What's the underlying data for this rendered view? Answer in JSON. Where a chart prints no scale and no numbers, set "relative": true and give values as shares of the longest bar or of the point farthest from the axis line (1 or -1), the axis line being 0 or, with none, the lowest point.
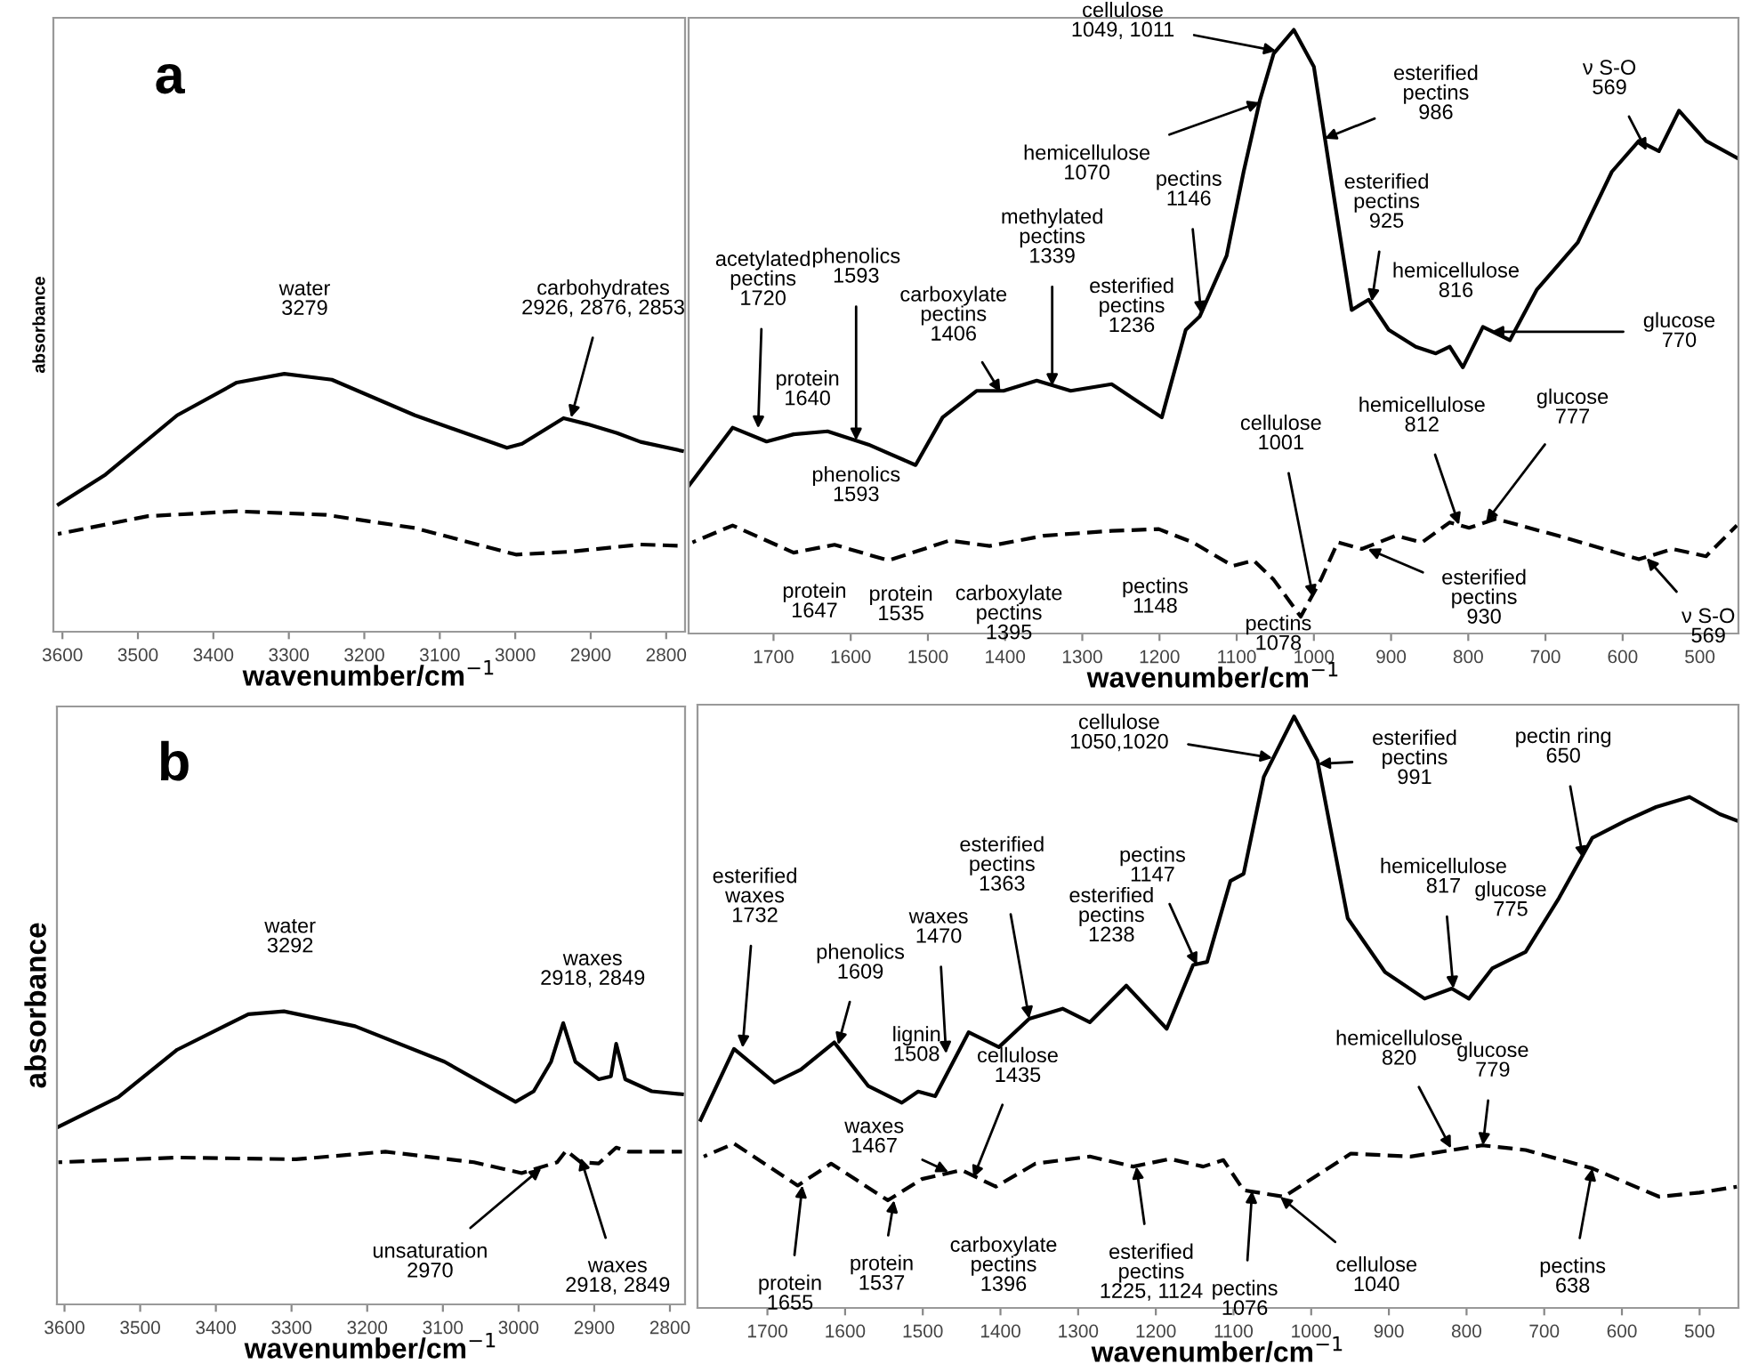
{
  "chart_data": [
    {
      "type": "line",
      "title": "a",
      "relative": true,
      "xlabel": "wavenumber/cm$^{−1}$",
      "ylabel": "absorbance",
      "xlim": [
        3612,
        2775
      ],
      "xticks": [
        3600,
        3500,
        3400,
        3300,
        3200,
        3100,
        3000,
        2900,
        2800
      ],
      "grid": false,
      "legend": false,
      "series": [
        {
          "color": "#000000",
          "line_style": "solid",
          "x": [
            3605,
            3543,
            3448,
            3369,
            3306,
            3243,
            3133,
            3011,
            2991,
            2936,
            2905,
            2865,
            2834,
            2779
          ],
          "values": [
            0.494,
            0.609,
            0.839,
            0.966,
            1.0,
            0.977,
            0.839,
            0.713,
            0.729,
            0.828,
            0.805,
            0.77,
            0.736,
            0.701
          ]
        },
        {
          "color": "#000000",
          "line_style": "dashed",
          "x": [
            3606,
            3487,
            3369,
            3251,
            3133,
            2999,
            2928,
            2834,
            2779
          ],
          "values": [
            0.379,
            0.448,
            0.467,
            0.453,
            0.402,
            0.299,
            0.31,
            0.338,
            0.333
          ]
        }
      ],
      "annotations": [
        {
          "text": "water\n3279",
          "x": 3279,
          "y": 1.0
        },
        {
          "text": "carbohydrates\n2926, 2876, 2853",
          "x": 2926,
          "y": 0.83
        }
      ]
    },
    {
      "type": "line",
      "relative": true,
      "xlabel": "wavenumber/cm$^{−1}$",
      "xlim": [
        1810,
        450
      ],
      "xticks": [
        1700,
        1600,
        1500,
        1400,
        1300,
        1200,
        1100,
        1000,
        900,
        800,
        700,
        600,
        500
      ],
      "grid": false,
      "legend": false,
      "series": [
        {
          "color": "#000000",
          "line_style": "solid",
          "x": [
            1809,
            1753,
            1709,
            1674,
            1630,
            1577,
            1516,
            1481,
            1437,
            1402,
            1359,
            1315,
            1262,
            1197,
            1166,
            1148,
            1113,
            1091,
            1070,
            1052,
            1026,
            1000,
            973,
            951,
            929,
            903,
            868,
            842,
            824,
            807,
            781,
            746,
            711,
            658,
            614,
            579,
            553,
            527,
            492,
            452
          ],
          "values": [
            0.246,
            0.341,
            0.318,
            0.33,
            0.335,
            0.313,
            0.279,
            0.358,
            0.402,
            0.402,
            0.419,
            0.402,
            0.413,
            0.358,
            0.503,
            0.525,
            0.626,
            0.765,
            0.883,
            0.961,
            1.0,
            0.939,
            0.715,
            0.536,
            0.553,
            0.503,
            0.475,
            0.464,
            0.475,
            0.441,
            0.508,
            0.486,
            0.57,
            0.648,
            0.765,
            0.816,
            0.799,
            0.866,
            0.816,
            0.788
          ]
        },
        {
          "color": "#000000",
          "line_style": "dashed",
          "x": [
            1805,
            1753,
            1674,
            1621,
            1551,
            1472,
            1420,
            1350,
            1262,
            1201,
            1157,
            1105,
            1078,
            1052,
            1017,
            991,
            969,
            938,
            894,
            860,
            824,
            799,
            764,
            684,
            579,
            535,
            492,
            452
          ],
          "values": [
            0.151,
            0.179,
            0.134,
            0.147,
            0.121,
            0.154,
            0.145,
            0.162,
            0.17,
            0.173,
            0.151,
            0.112,
            0.121,
            0.089,
            0.028,
            0.089,
            0.151,
            0.14,
            0.162,
            0.151,
            0.184,
            0.175,
            0.19,
            0.162,
            0.123,
            0.14,
            0.128,
            0.179
          ]
        }
      ],
      "annotations": [
        {
          "text": "acetylated\npectins\n1720",
          "x": 1720,
          "y": 0.34
        },
        {
          "text": "protein\n1640",
          "x": 1640,
          "y": 0.33
        },
        {
          "text": "phenolics\n1593",
          "x": 1593,
          "y": 0.32
        },
        {
          "text": "carboxylate\npectins\n1406",
          "x": 1406,
          "y": 0.4
        },
        {
          "text": "methylated\npectins\n1339",
          "x": 1339,
          "y": 0.41
        },
        {
          "text": "esterified\npectins\n1236",
          "x": 1236,
          "y": 0.41
        },
        {
          "text": "pectins\n1146",
          "x": 1146,
          "y": 0.53
        },
        {
          "text": "hemicellulose\n1070",
          "x": 1070,
          "y": 0.88
        },
        {
          "text": "cellulose\n1049, 1011",
          "x": 1049,
          "y": 0.965
        },
        {
          "text": "esterified\npectins\n986",
          "x": 986,
          "y": 0.82
        },
        {
          "text": "esterified\npectins\n925",
          "x": 925,
          "y": 0.55
        },
        {
          "text": "hemicellulose\n816",
          "x": 816,
          "y": 0.46
        },
        {
          "text": "glucose\n770",
          "x": 770,
          "y": 0.5
        },
        {
          "text": "ν S-O\n569",
          "x": 569,
          "y": 0.8
        },
        {
          "text": "phenolics\n1593",
          "x": 1593,
          "y": 0.13
        },
        {
          "text": "protein\n1647",
          "x": 1647,
          "y": 0.134
        },
        {
          "text": "protein\n1535",
          "x": 1535,
          "y": 0.125
        },
        {
          "text": "carboxylate\npectins\n1395",
          "x": 1395,
          "y": 0.155
        },
        {
          "text": "pectins\n1148",
          "x": 1148,
          "y": 0.15
        },
        {
          "text": "pectins\n1078",
          "x": 1078,
          "y": 0.121
        },
        {
          "text": "cellulose\n1001",
          "x": 1001,
          "y": 0.06
        },
        {
          "text": "esterified\npectins\n930",
          "x": 930,
          "y": 0.14
        },
        {
          "text": "hemicellulose\n812",
          "x": 812,
          "y": 0.18
        },
        {
          "text": "glucose\n777",
          "x": 777,
          "y": 0.185
        },
        {
          "text": "ν S-O\n569",
          "x": 569,
          "y": 0.125
        }
      ]
    },
    {
      "type": "line",
      "title": "b",
      "relative": true,
      "xlabel": "wavenumber/cm$^{−1}$",
      "ylabel": "absorbance",
      "xlim": [
        3610,
        2780
      ],
      "xticks": [
        3600,
        3500,
        3400,
        3300,
        3200,
        3100,
        3000,
        2900,
        2800
      ],
      "grid": false,
      "legend": false,
      "series": [
        {
          "color": "#000000",
          "line_style": "solid",
          "x": [
            3608,
            3529,
            3451,
            3357,
            3310,
            3216,
            3098,
            3004,
            2980,
            2957,
            2941,
            2925,
            2894,
            2878,
            2871,
            2859,
            2824,
            2784
          ],
          "values": [
            0.606,
            0.707,
            0.869,
            0.99,
            1.0,
            0.949,
            0.828,
            0.691,
            0.727,
            0.828,
            0.96,
            0.828,
            0.768,
            0.778,
            0.889,
            0.768,
            0.727,
            0.717
          ]
        },
        {
          "color": "#000000",
          "line_style": "dashed",
          "x": [
            3608,
            3451,
            3294,
            3176,
            3059,
            2996,
            2949,
            2937,
            2918,
            2894,
            2871,
            2855,
            2784
          ],
          "values": [
            0.485,
            0.501,
            0.495,
            0.521,
            0.485,
            0.448,
            0.485,
            0.525,
            0.485,
            0.481,
            0.535,
            0.521,
            0.521
          ]
        }
      ],
      "annotations": [
        {
          "text": "water\n3292",
          "x": 3292,
          "y": 1.0
        },
        "waxes\n2918, 2849",
        {
          "text": "unsaturation\n2970",
          "x": 2970,
          "y": 0.465
        },
        {
          "text": "waxes\n2918, 2849",
          "x": 2918,
          "y": 0.5
        }
      ]
    },
    {
      "type": "line",
      "relative": true,
      "xlabel": "wavenumber/cm$^{−1}$",
      "xlim": [
        1790,
        450
      ],
      "xticks": [
        1700,
        1600,
        1500,
        1400,
        1300,
        1200,
        1100,
        1000,
        900,
        800,
        700,
        600,
        500
      ],
      "grid": false,
      "legend": false,
      "series": [
        {
          "color": "#000000",
          "line_style": "solid",
          "x": [
            1786,
            1743,
            1691,
            1657,
            1614,
            1570,
            1527,
            1506,
            1484,
            1441,
            1402,
            1363,
            1320,
            1285,
            1238,
            1186,
            1152,
            1134,
            1104,
            1087,
            1061,
            1022,
            992,
            953,
            905,
            854,
            819,
            797,
            767,
            724,
            681,
            638,
            595,
            556,
            513,
            474,
            452
          ],
          "values": [
            0.318,
            0.438,
            0.381,
            0.403,
            0.449,
            0.375,
            0.347,
            0.366,
            0.358,
            0.466,
            0.441,
            0.489,
            0.506,
            0.483,
            0.545,
            0.472,
            0.58,
            0.585,
            0.722,
            0.734,
            0.898,
            1.0,
            0.926,
            0.659,
            0.568,
            0.523,
            0.54,
            0.523,
            0.574,
            0.602,
            0.693,
            0.795,
            0.824,
            0.847,
            0.864,
            0.835,
            0.824
          ]
        },
        {
          "color": "#000000",
          "line_style": "dashed",
          "x": [
            1782,
            1743,
            1661,
            1618,
            1545,
            1501,
            1450,
            1406,
            1355,
            1285,
            1229,
            1182,
            1139,
            1113,
            1087,
            1035,
            949,
            872,
            780,
            724,
            638,
            552,
            500,
            452
          ],
          "values": [
            0.256,
            0.278,
            0.207,
            0.244,
            0.182,
            0.218,
            0.233,
            0.205,
            0.244,
            0.256,
            0.239,
            0.252,
            0.239,
            0.25,
            0.199,
            0.188,
            0.261,
            0.256,
            0.275,
            0.267,
            0.236,
            0.188,
            0.195,
            0.205
          ]
        }
      ],
      "annotations": [
        {
          "text": "esterified\nwaxes\n1732",
          "x": 1732,
          "y": 0.44
        },
        {
          "text": "phenolics\n1609",
          "x": 1609,
          "y": 0.445
        },
        {
          "text": "waxes\n1470",
          "x": 1470,
          "y": 0.43
        },
        {
          "text": "lignin\n1508",
          "x": 1508,
          "y": 0.36
        },
        {
          "text": "esterified\npectins\n1363",
          "x": 1363,
          "y": 0.489
        },
        {
          "text": "esterified\npectins\n1238",
          "x": 1238,
          "y": 0.545
        },
        {
          "text": "pectins\n1147",
          "x": 1147,
          "y": 0.58
        },
        {
          "text": "cellulose\n1050,1020",
          "x": 1050,
          "y": 0.93
        },
        {
          "text": "esterified\npectins\n991",
          "x": 991,
          "y": 0.92
        },
        {
          "text": "pectin ring\n650",
          "x": 650,
          "y": 0.76
        },
        {
          "text": "hemicellulose\n817",
          "x": 817,
          "y": 0.54
        },
        {
          "text": "glucose\n775",
          "x": 775,
          "y": 0.58
        },
        {
          "text": "waxes\n1467",
          "x": 1467,
          "y": 0.23
        },
        {
          "text": "cellulose\n1435",
          "x": 1435,
          "y": 0.22
        },
        {
          "text": "protein\n1655",
          "x": 1655,
          "y": 0.207
        },
        {
          "text": "protein\n1537",
          "x": 1537,
          "y": 0.182
        },
        {
          "text": "carboxylate\npectins\n1396",
          "x": 1396,
          "y": 0.205
        },
        {
          "text": "esterified\npectins\n1225, 1124",
          "x": 1225,
          "y": 0.239
        },
        {
          "text": "pectins\n1076",
          "x": 1076,
          "y": 0.198
        },
        {
          "text": "cellulose\n1040",
          "x": 1040,
          "y": 0.188
        },
        {
          "text": "hemicellulose\n820",
          "x": 820,
          "y": 0.27
        },
        {
          "text": "glucose\n779",
          "x": 779,
          "y": 0.275
        },
        {
          "text": "pectins\n638",
          "x": 638,
          "y": 0.236
        }
      ]
    }
  ]
}
